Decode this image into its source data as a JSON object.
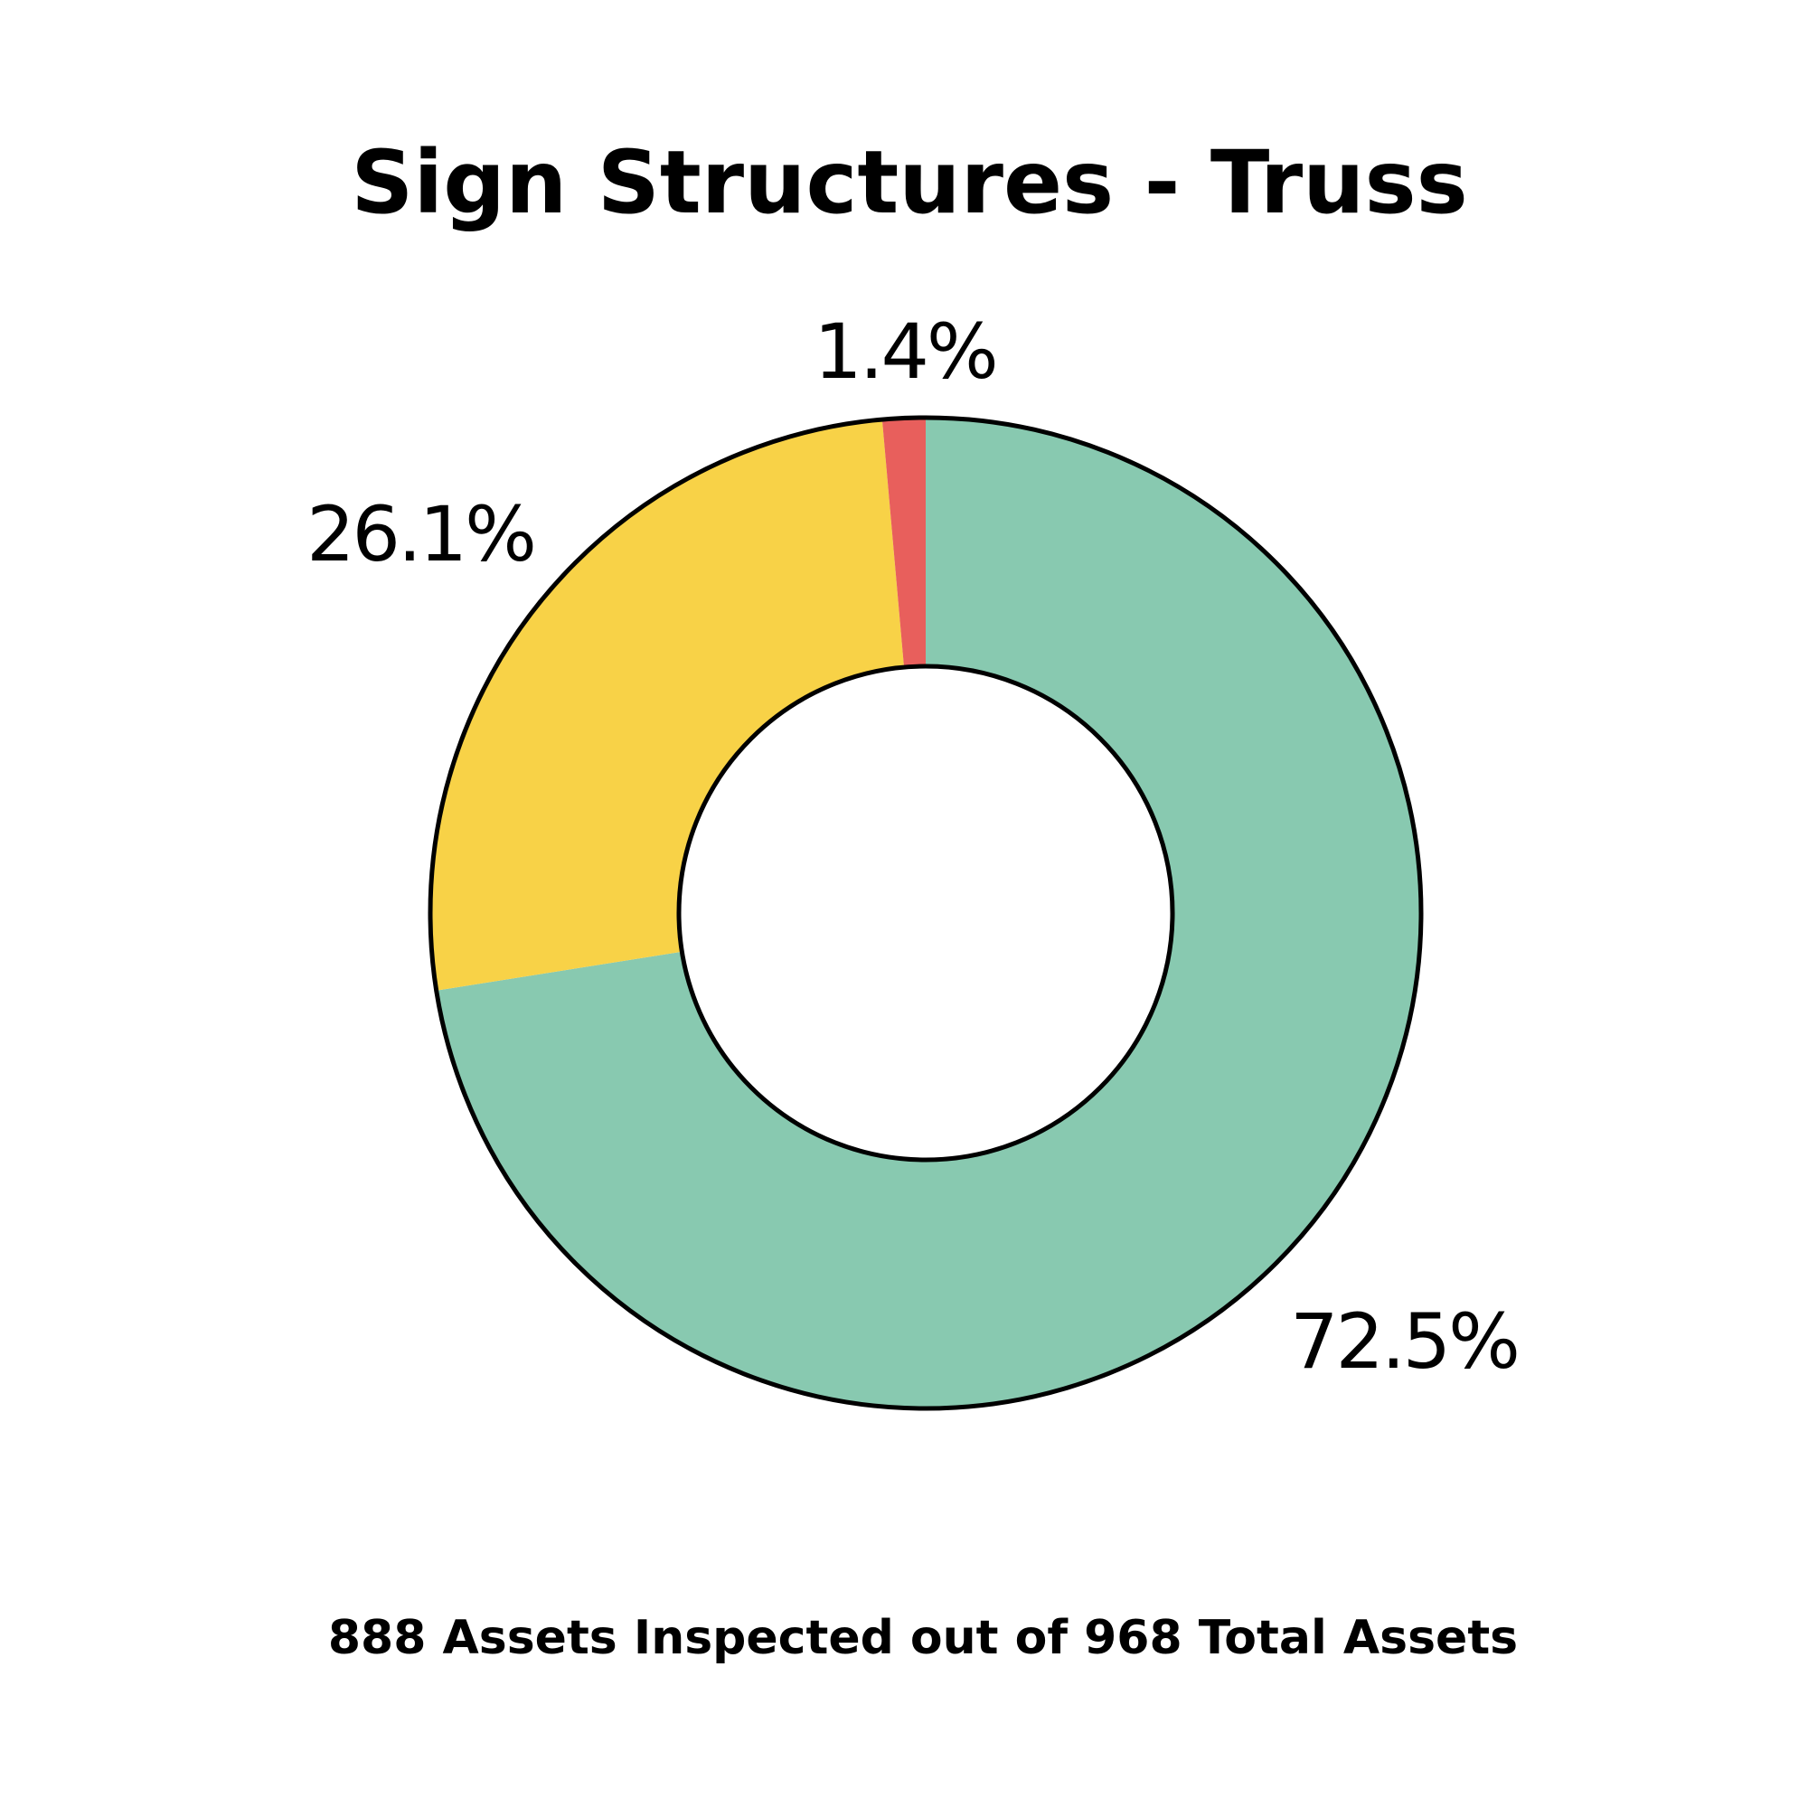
{
  "chart_data": {
    "type": "pie",
    "title": "Sign Structures - Truss",
    "footer": "888 Assets Inspected out of 968 Total Assets",
    "slices": [
      {
        "value": 72.5,
        "label": "72.5%",
        "color": "#88c9b0"
      },
      {
        "value": 26.1,
        "label": "26.1%",
        "color": "#f8d247"
      },
      {
        "value": 1.4,
        "label": "1.4%",
        "color": "#e85f5c"
      }
    ]
  }
}
